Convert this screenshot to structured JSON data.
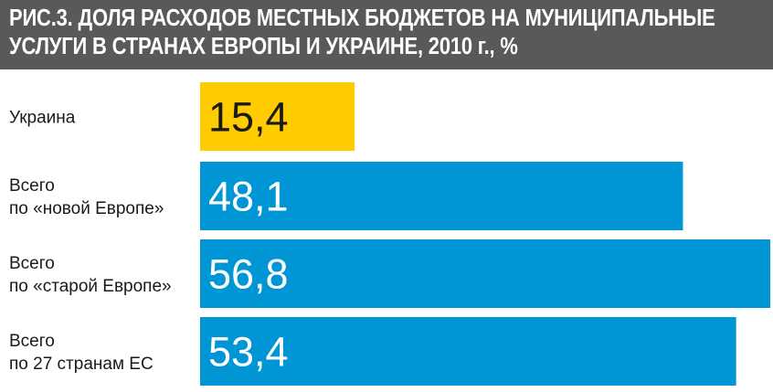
{
  "chart_data": {
    "type": "bar",
    "orientation": "horizontal",
    "title": "РИС.3. ДОЛЯ РАСХОДОВ МЕСТНЫХ БЮДЖЕТОВ НА МУНИЦИПАЛЬНЫЕ УСЛУГИ В СТРАНАХ ЕВРОПЫ И УКРАИНЕ, 2010 г., %",
    "categories": [
      [
        "Украина"
      ],
      [
        "Всего",
        "по «новой Европе»"
      ],
      [
        "Всего",
        "по «старой Европе»"
      ],
      [
        "Всего",
        "по 27 странам ЕС"
      ]
    ],
    "values": [
      15.4,
      48.1,
      56.8,
      53.4
    ],
    "value_labels": [
      "15,4",
      "48,1",
      "56,8",
      "53,4"
    ],
    "xlim": [
      0,
      56.8
    ],
    "grid": false,
    "legend": "none",
    "colors": {
      "highlight_bar": "#ffcc00",
      "bar": "#0096d6",
      "highlight_text": "#1a1a1a",
      "bar_text": "#ffffff",
      "title_bar": "#58595b"
    }
  }
}
